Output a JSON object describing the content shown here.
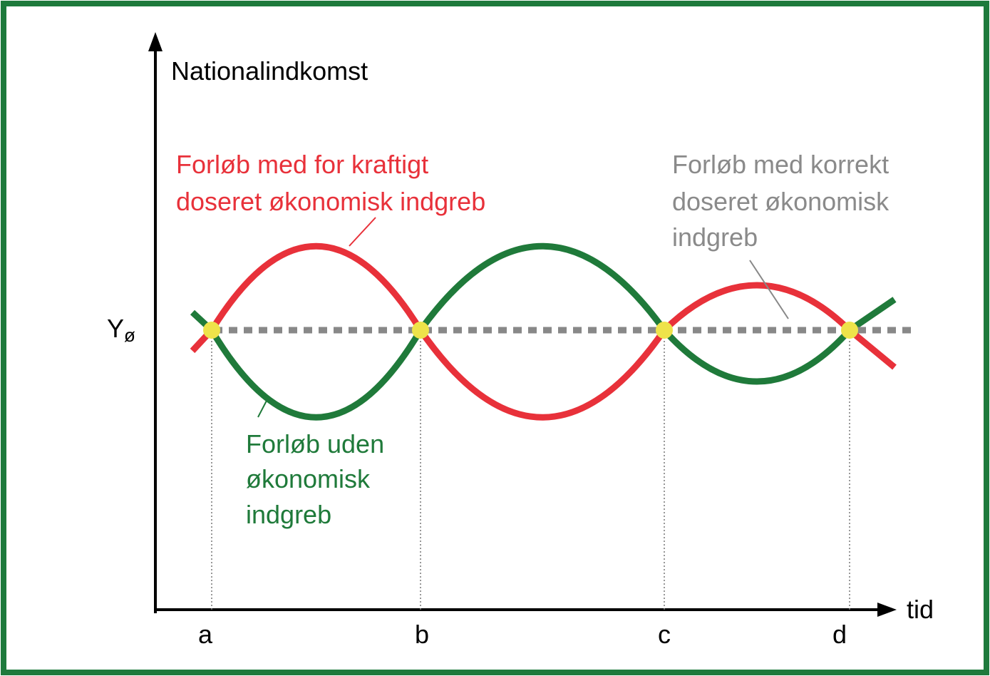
{
  "axes": {
    "y_label": "Nationalindkomst",
    "x_label": "tid",
    "level": {
      "symbol": "Y",
      "subscript": "ø"
    },
    "ticks": [
      "a",
      "b",
      "c",
      "d"
    ]
  },
  "annotations": {
    "red": [
      "Forløb med for kraftigt",
      "doseret økonomisk indgreb"
    ],
    "gray": [
      "Forløb med korrekt",
      "doseret økonomisk",
      "indgreb"
    ],
    "green": [
      "Forløb uden",
      "økonomisk",
      "indgreb"
    ]
  }
}
